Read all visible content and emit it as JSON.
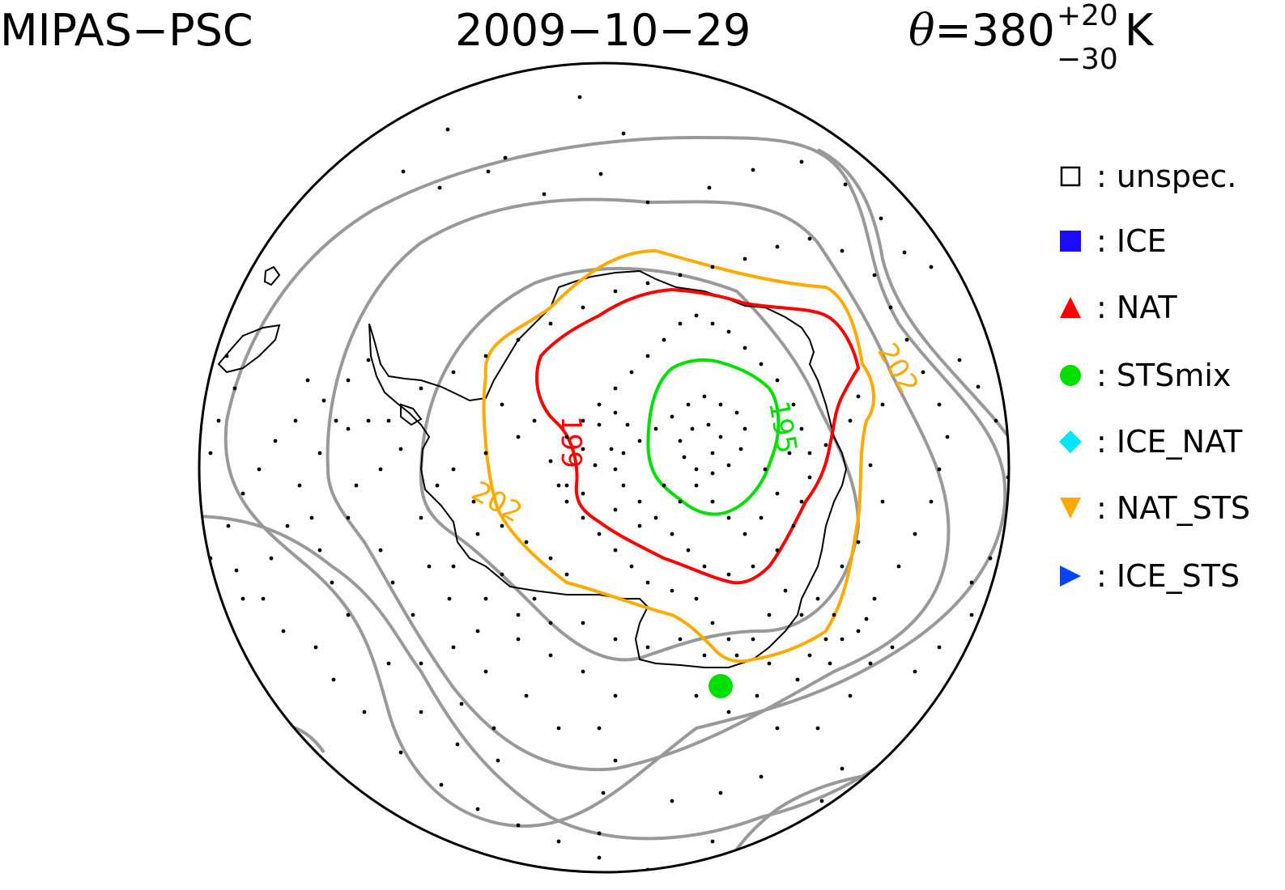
{
  "header": {
    "instrument": "MIPAS−PSC",
    "date": "2009−10−29",
    "theta_symbol": "θ",
    "theta_value": "=380",
    "theta_upper": "+20",
    "theta_lower": "−30",
    "theta_unit": "K"
  },
  "legend": [
    {
      "label": "unspec.",
      "separator": ":",
      "symbol": "square-open",
      "color": "#000000"
    },
    {
      "label": "ICE",
      "separator": ":",
      "symbol": "square-filled",
      "color": "#1a0dff"
    },
    {
      "label": "NAT",
      "separator": ":",
      "symbol": "triangle-up",
      "color": "#ff0000"
    },
    {
      "label": "STSmix",
      "separator": ":",
      "symbol": "circle",
      "color": "#00e000"
    },
    {
      "label": "ICE_NAT",
      "separator": ":",
      "symbol": "diamond",
      "color": "#00e5ff"
    },
    {
      "label": "NAT_STS",
      "separator": ":",
      "symbol": "triangle-down",
      "color": "#ffaa00"
    },
    {
      "label": "ICE_STS",
      "separator": ":",
      "symbol": "triangle-right",
      "color": "#0044ff"
    }
  ],
  "contours": {
    "background_color": "#999999",
    "c195": {
      "label": "195",
      "color": "#00e000"
    },
    "c199": {
      "label": "199",
      "color": "#ff0000"
    },
    "c202": {
      "label": "202",
      "color": "#ffaa00"
    }
  },
  "observations": {
    "stsmix_points": 1,
    "unspecified_marker": "dot"
  }
}
